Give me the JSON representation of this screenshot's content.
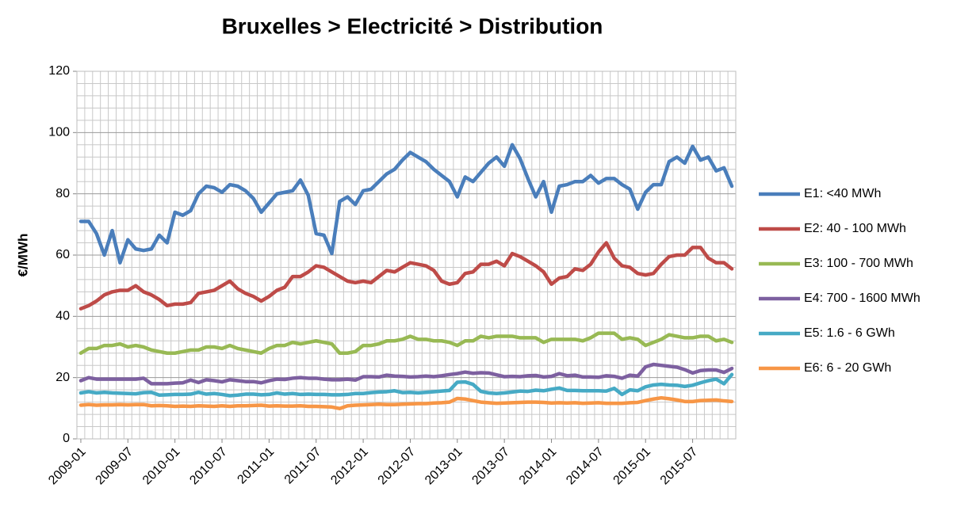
{
  "chart_data": {
    "type": "line",
    "title": "Bruxelles > Electricité > Distribution",
    "y_label": "€/MWh",
    "categories": [
      "2009-01",
      null,
      null,
      null,
      null,
      null,
      "2009-07",
      null,
      null,
      null,
      null,
      null,
      "2010-01",
      null,
      null,
      null,
      null,
      null,
      "2010-07",
      null,
      null,
      null,
      null,
      null,
      "2011-01",
      null,
      null,
      null,
      null,
      null,
      "2011-07",
      null,
      null,
      null,
      null,
      null,
      "2012-01",
      null,
      null,
      null,
      null,
      null,
      "2012-07",
      null,
      null,
      null,
      null,
      null,
      "2013-01",
      null,
      null,
      null,
      null,
      null,
      "2013-07",
      null,
      null,
      null,
      null,
      null,
      "2014-01",
      null,
      null,
      null,
      null,
      null,
      "2014-07",
      null,
      null,
      null,
      null,
      null,
      "2015-01",
      null,
      null,
      null,
      null,
      null,
      "2015-07",
      null,
      null,
      null,
      null,
      null
    ],
    "ylim": [
      0,
      120
    ],
    "yticks": [
      0,
      20,
      40,
      60,
      80,
      100,
      120
    ],
    "grid": true,
    "legend": "right",
    "series": [
      {
        "name": "E1: <40 MWh",
        "color": "#4a7ebb",
        "values": [
          71,
          71,
          67,
          60,
          68,
          57.5,
          65,
          62,
          61.5,
          62,
          66.5,
          64,
          74,
          73,
          74.5,
          80,
          82.5,
          82,
          80.5,
          83,
          82.5,
          81,
          78.5,
          74,
          77,
          80,
          80.5,
          81,
          84.5,
          79.5,
          67,
          66.5,
          60.5,
          77.5,
          79,
          76.5,
          81,
          81.5,
          84,
          86.5,
          88,
          91,
          93.5,
          92,
          90.5,
          88,
          86,
          84,
          79,
          85.5,
          84,
          87,
          90,
          92,
          89,
          96,
          91.5,
          85,
          79,
          84,
          74,
          82.5,
          83,
          84,
          84,
          86,
          83.5,
          85,
          85,
          83,
          81.5,
          75,
          80.5,
          83,
          83,
          90.5,
          92,
          90,
          95.5,
          91,
          92,
          87.5,
          88.5,
          82.5
        ]
      },
      {
        "name": "E2: 40 - 100 MWh",
        "color": "#be4b48",
        "values": [
          42.5,
          43.5,
          45,
          47,
          48,
          48.5,
          48.5,
          50,
          48,
          47,
          45.5,
          43.5,
          44,
          44,
          44.5,
          47.5,
          48,
          48.5,
          50,
          51.5,
          49,
          47.5,
          46.5,
          45,
          46.5,
          48.5,
          49.5,
          53,
          53,
          54.5,
          56.5,
          56,
          54.5,
          53,
          51.5,
          51,
          51.5,
          51,
          53,
          55,
          54.5,
          56,
          57.5,
          57,
          56.5,
          55,
          51.5,
          50.5,
          51,
          54,
          54.5,
          57,
          57,
          58,
          56.5,
          60.5,
          59.5,
          58,
          56.5,
          54.5,
          50.5,
          52.5,
          53,
          55.5,
          55,
          57,
          61,
          64,
          59,
          56.5,
          56,
          54,
          53.5,
          54,
          57,
          59.5,
          60,
          60,
          62.5,
          62.5,
          59,
          57.5,
          57.5,
          55.5
        ]
      },
      {
        "name": "E3: 100 - 700 MWh",
        "color": "#98b954",
        "values": [
          28,
          29.5,
          29.5,
          30.5,
          30.5,
          31,
          30,
          30.5,
          30,
          29,
          28.5,
          28,
          28,
          28.5,
          29,
          29,
          30,
          30,
          29.5,
          30.5,
          29.5,
          29,
          28.5,
          28,
          29.5,
          30.5,
          30.5,
          31.5,
          31,
          31.5,
          32,
          31.5,
          31,
          28,
          28,
          28.5,
          30.5,
          30.5,
          31,
          32,
          32,
          32.5,
          33.5,
          32.5,
          32.5,
          32,
          32,
          31.5,
          30.5,
          32,
          32,
          33.5,
          33,
          33.5,
          33.5,
          33.5,
          33,
          33,
          33,
          31.5,
          32.5,
          32.5,
          32.5,
          32.5,
          32,
          33,
          34.5,
          34.5,
          34.5,
          32.5,
          33,
          32.5,
          30.5,
          31.5,
          32.5,
          34,
          33.5,
          33,
          33,
          33.5,
          33.5,
          32,
          32.5,
          31.5
        ]
      },
      {
        "name": "E4: 700 - 1600 MWh",
        "color": "#7d60a0",
        "values": [
          19,
          20,
          19.5,
          19.5,
          19.5,
          19.5,
          19.5,
          19.5,
          19.8,
          18,
          18,
          18,
          18.2,
          18.3,
          19.2,
          18.4,
          19.3,
          19,
          18.6,
          19.3,
          19,
          18.7,
          18.7,
          18.3,
          19,
          19.5,
          19.4,
          19.8,
          20,
          19.8,
          19.8,
          19.5,
          19.3,
          19.3,
          19.5,
          19.2,
          20.3,
          20.3,
          20.2,
          20.8,
          20.5,
          20.4,
          20.2,
          20.3,
          20.5,
          20.3,
          20.6,
          21,
          21.3,
          21.8,
          21.4,
          21.6,
          21.5,
          20.9,
          20.3,
          20.4,
          20.3,
          20.6,
          20.7,
          20.2,
          20.4,
          21.3,
          20.6,
          20.8,
          20.2,
          20.2,
          20.1,
          20.6,
          20.4,
          19.8,
          20.8,
          20.5,
          23.5,
          24.3,
          24,
          23.7,
          23.4,
          22.6,
          21.5,
          22.3,
          22.5,
          22.5,
          21.7,
          23
        ]
      },
      {
        "name": "E5: 1.6 - 6 GWh",
        "color": "#46aac5",
        "values": [
          15,
          15.4,
          15,
          15.2,
          15,
          14.9,
          14.8,
          14.7,
          15.1,
          15.2,
          14.3,
          14.4,
          14.5,
          14.5,
          14.6,
          15.2,
          14.6,
          14.8,
          14.5,
          14.1,
          14.3,
          14.6,
          14.6,
          14.4,
          14.5,
          15,
          14.6,
          14.8,
          14.5,
          14.6,
          14.5,
          14.5,
          14.4,
          14.4,
          14.5,
          14.8,
          14.8,
          15.1,
          15.3,
          15.4,
          15.7,
          15.1,
          15.2,
          15,
          15.2,
          15.4,
          15.6,
          15.8,
          18.5,
          18.6,
          17.8,
          15.5,
          15,
          14.8,
          15,
          15.3,
          15.6,
          15.5,
          15.9,
          15.7,
          16.2,
          16.6,
          15.8,
          15.8,
          15.7,
          15.7,
          15.7,
          15.6,
          16.5,
          14.5,
          16,
          15.7,
          17,
          17.6,
          17.8,
          17.6,
          17.5,
          17.1,
          17.5,
          18.3,
          19,
          19.5,
          18,
          21
        ]
      },
      {
        "name": "E6: 6 - 20 GWh",
        "color": "#f79646",
        "values": [
          11,
          11.2,
          11,
          11.1,
          11.1,
          11.2,
          11.1,
          11.2,
          11.2,
          10.8,
          10.9,
          10.8,
          10.6,
          10.7,
          10.6,
          10.8,
          10.7,
          10.6,
          10.8,
          10.6,
          10.8,
          10.8,
          10.9,
          11,
          10.7,
          10.8,
          10.7,
          10.7,
          10.8,
          10.6,
          10.6,
          10.5,
          10.4,
          9.9,
          10.8,
          11,
          11.1,
          11.2,
          11.3,
          11.2,
          11.2,
          11.3,
          11.4,
          11.5,
          11.5,
          11.7,
          11.8,
          12,
          13.2,
          13,
          12.5,
          12,
          11.8,
          11.6,
          11.7,
          11.8,
          11.9,
          12,
          12,
          11.9,
          11.7,
          11.8,
          11.7,
          11.8,
          11.6,
          11.7,
          11.8,
          11.6,
          11.6,
          11.6,
          11.8,
          11.9,
          12.5,
          13,
          13.4,
          13.1,
          12.7,
          12.2,
          12.2,
          12.5,
          12.6,
          12.7,
          12.4,
          12.2
        ]
      }
    ]
  }
}
